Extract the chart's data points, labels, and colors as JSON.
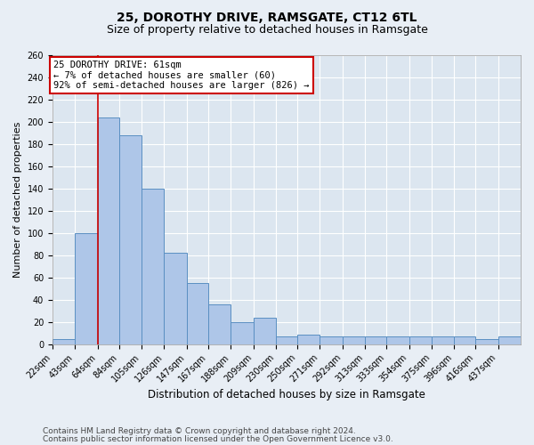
{
  "title1": "25, DOROTHY DRIVE, RAMSGATE, CT12 6TL",
  "title2": "Size of property relative to detached houses in Ramsgate",
  "xlabel": "Distribution of detached houses by size in Ramsgate",
  "ylabel": "Number of detached properties",
  "footer1": "Contains HM Land Registry data © Crown copyright and database right 2024.",
  "footer2": "Contains public sector information licensed under the Open Government Licence v3.0.",
  "annotation_line1": "25 DOROTHY DRIVE: 61sqm",
  "annotation_line2": "← 7% of detached houses are smaller (60)",
  "annotation_line3": "92% of semi-detached houses are larger (826) →",
  "property_size": 61,
  "bar_left_edges": [
    22,
    43,
    64,
    84,
    105,
    126,
    147,
    167,
    188,
    209,
    230,
    250,
    271,
    292,
    313,
    333,
    354,
    375,
    396,
    416,
    437
  ],
  "bar_widths": [
    21,
    21,
    20,
    21,
    21,
    21,
    20,
    21,
    21,
    21,
    20,
    21,
    21,
    21,
    20,
    21,
    21,
    21,
    20,
    21,
    21
  ],
  "bar_heights": [
    5,
    100,
    204,
    188,
    140,
    82,
    55,
    36,
    20,
    24,
    7,
    9,
    7,
    7,
    7,
    7,
    7,
    7,
    7,
    5,
    7
  ],
  "bar_color": "#aec6e8",
  "bar_edge_color": "#5a8fc2",
  "vline_color": "#cc0000",
  "vline_x": 64,
  "annotation_box_color": "#cc0000",
  "annotation_text_color": "#000000",
  "background_color": "#e8eef5",
  "plot_bg_color": "#dce6f0",
  "grid_color": "#ffffff",
  "ylim": [
    0,
    260
  ],
  "yticks": [
    0,
    20,
    40,
    60,
    80,
    100,
    120,
    140,
    160,
    180,
    200,
    220,
    240,
    260
  ],
  "title1_fontsize": 10,
  "title2_fontsize": 9,
  "xlabel_fontsize": 8.5,
  "ylabel_fontsize": 8,
  "tick_fontsize": 7,
  "annotation_fontsize": 7.5,
  "footer_fontsize": 6.5
}
